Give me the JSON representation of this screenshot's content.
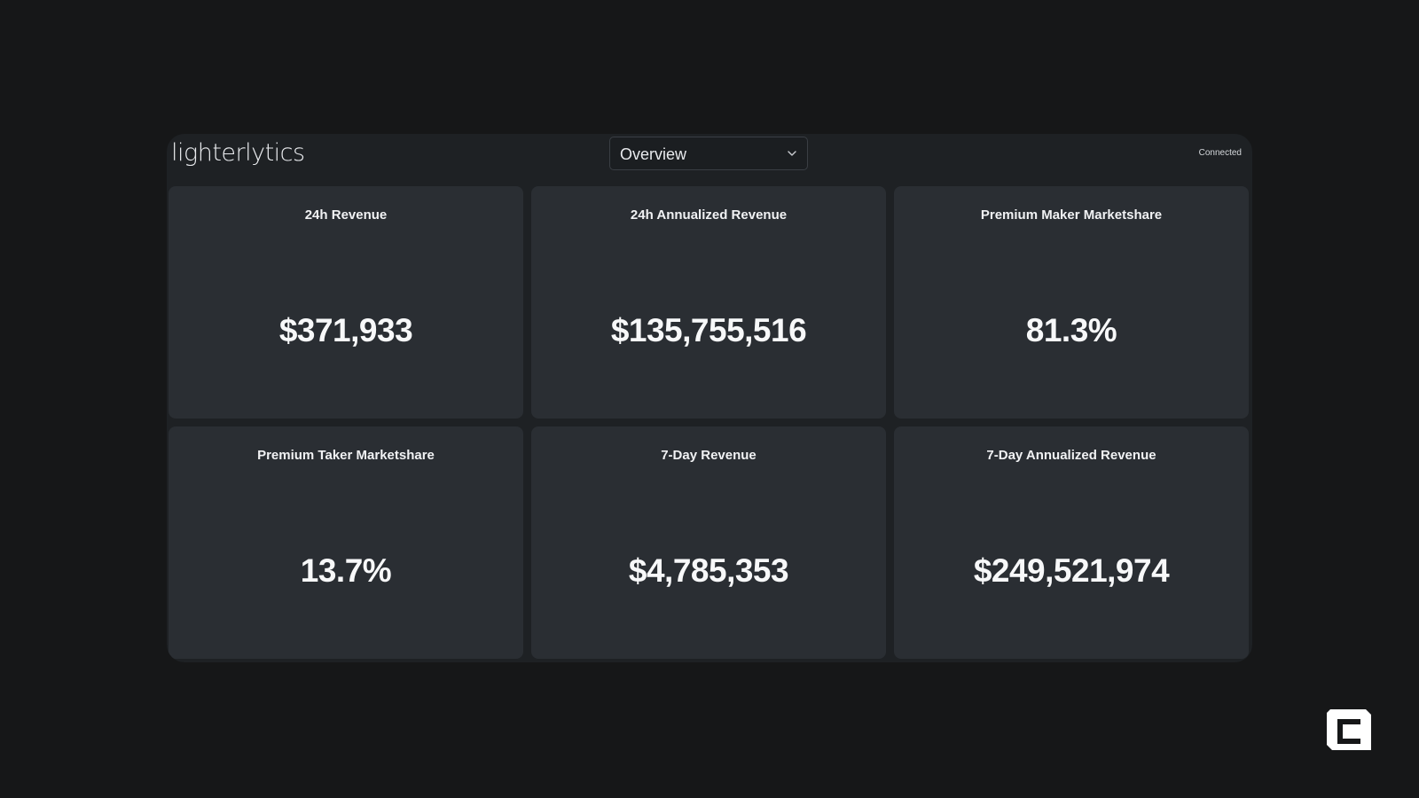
{
  "app": {
    "brand": "lighterlytics",
    "view_select": {
      "selected": "Overview"
    },
    "status": "Connected"
  },
  "metrics": [
    {
      "title": "24h Revenue",
      "value": "$371,933"
    },
    {
      "title": "24h Annualized Revenue",
      "value": "$135,755,516"
    },
    {
      "title": "Premium Maker Marketshare",
      "value": "81.3%"
    },
    {
      "title": "Premium Taker Marketshare",
      "value": "13.7%"
    },
    {
      "title": "7-Day Revenue",
      "value": "$4,785,353"
    },
    {
      "title": "7-Day Annualized Revenue",
      "value": "$249,521,974"
    }
  ],
  "icons": {
    "select_chevron": "chevron-down-icon",
    "corner_logo": "watermark-logo-icon"
  },
  "colors": {
    "page_background": "#161718",
    "panel_background": "#1e2124",
    "card_background": "#2a2e33",
    "text": "#f7f8f9"
  }
}
